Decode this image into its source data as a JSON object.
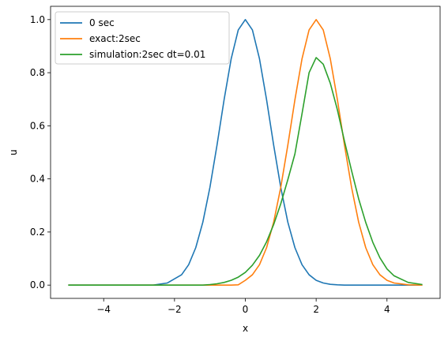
{
  "chart_data": {
    "type": "line",
    "xlabel": "x",
    "ylabel": "u",
    "xlim": [
      -5.5,
      5.5
    ],
    "ylim": [
      -0.05,
      1.05
    ],
    "xticks": [
      -4,
      -2,
      0,
      2,
      4
    ],
    "yticks": [
      0.0,
      0.2,
      0.4,
      0.6,
      0.8,
      1.0
    ],
    "xtick_labels": [
      "−4",
      "−2",
      "0",
      "2",
      "4"
    ],
    "ytick_labels": [
      "0.0",
      "0.2",
      "0.4",
      "0.6",
      "0.8",
      "1.0"
    ],
    "grid": false,
    "legend_position": "top-left",
    "x": [
      -5.0,
      -4.6,
      -4.2,
      -3.8,
      -3.4,
      -3.0,
      -2.6,
      -2.2,
      -1.8,
      -1.6,
      -1.4,
      -1.2,
      -1.0,
      -0.8,
      -0.6,
      -0.4,
      -0.2,
      0.0,
      0.2,
      0.4,
      0.6,
      0.8,
      1.0,
      1.2,
      1.4,
      1.6,
      1.8,
      2.0,
      2.2,
      2.4,
      2.6,
      2.8,
      3.0,
      3.2,
      3.4,
      3.6,
      3.8,
      4.0,
      4.2,
      4.6,
      5.0
    ],
    "series": [
      {
        "name": "0 sec",
        "color": "#1f77b4",
        "values": [
          0.0,
          0.0,
          0.0,
          0.0,
          0.0,
          0.0,
          0.0,
          0.008,
          0.039,
          0.077,
          0.141,
          0.237,
          0.368,
          0.527,
          0.698,
          0.852,
          0.961,
          1.0,
          0.961,
          0.852,
          0.698,
          0.527,
          0.368,
          0.237,
          0.141,
          0.077,
          0.039,
          0.018,
          0.008,
          0.003,
          0.001,
          0.0,
          0.0,
          0.0,
          0.0,
          0.0,
          0.0,
          0.0,
          0.0,
          0.0,
          0.0
        ]
      },
      {
        "name": "exact:2sec",
        "color": "#ff7f0e",
        "values": [
          0.0,
          0.0,
          0.0,
          0.0,
          0.0,
          0.0,
          0.0,
          0.0,
          0.0,
          0.0,
          0.0,
          0.0,
          0.0,
          0.0,
          0.0,
          0.0,
          0.001,
          0.018,
          0.039,
          0.077,
          0.141,
          0.237,
          0.368,
          0.527,
          0.698,
          0.852,
          0.961,
          1.0,
          0.961,
          0.852,
          0.698,
          0.527,
          0.368,
          0.237,
          0.141,
          0.077,
          0.039,
          0.018,
          0.008,
          0.001,
          0.0
        ]
      },
      {
        "name": "simulation:2sec dt=0.01",
        "color": "#2ca02c",
        "values": [
          0.0,
          0.0,
          0.0,
          0.0,
          0.0,
          0.0,
          0.0,
          0.0,
          0.0,
          0.0,
          0.0,
          0.0,
          0.002,
          0.005,
          0.01,
          0.018,
          0.03,
          0.048,
          0.075,
          0.112,
          0.163,
          0.228,
          0.306,
          0.397,
          0.494,
          0.645,
          0.8,
          0.857,
          0.832,
          0.76,
          0.66,
          0.542,
          0.431,
          0.325,
          0.236,
          0.161,
          0.103,
          0.061,
          0.035,
          0.01,
          0.002
        ]
      }
    ]
  }
}
